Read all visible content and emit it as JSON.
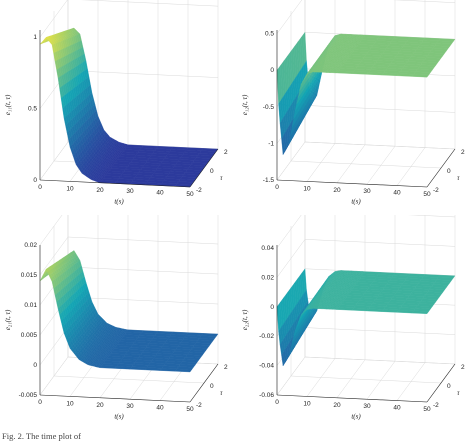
{
  "colors": {
    "low": "#2c3a9c",
    "mid": "#14a6b4",
    "high": "#fbe83a",
    "axis": "#222222",
    "grid": "#d9d9d9"
  },
  "caption_fragment": "Fig. 2. The time plot of",
  "chart_data": [
    {
      "type": "surface",
      "title": "",
      "xlabel": "t(s)",
      "ylabel": "τ",
      "zlabel": "e₁₁(t, τ)",
      "x_ticks": [
        "0",
        "10",
        "20",
        "30",
        "40",
        "50"
      ],
      "y_ticks": [
        "-2",
        "0",
        "2"
      ],
      "z_ticks": [
        "0",
        "0.5",
        "1"
      ],
      "xlim": [
        0,
        50
      ],
      "ylim": [
        -2,
        2
      ],
      "zlim": [
        0,
        1.05
      ],
      "grid": true,
      "profile": [
        [
          0,
          0.95
        ],
        [
          2,
          1.0
        ],
        [
          4,
          0.95
        ],
        [
          6,
          0.72
        ],
        [
          8,
          0.44
        ],
        [
          10,
          0.24
        ],
        [
          12,
          0.12
        ],
        [
          14,
          0.06
        ],
        [
          17,
          0.02
        ],
        [
          20,
          0
        ],
        [
          50,
          0
        ]
      ],
      "tau_decay": 0.2
    },
    {
      "type": "surface",
      "title": "",
      "xlabel": "t(s)",
      "ylabel": "τ",
      "zlabel": "e₁₂(t, τ)",
      "x_ticks": [
        "0",
        "10",
        "20",
        "30",
        "40",
        "50"
      ],
      "y_ticks": [
        "-2",
        "0",
        "2"
      ],
      "z_ticks": [
        "-1.5",
        "-1",
        "-0.5",
        "0",
        "0.5"
      ],
      "xlim": [
        0,
        50
      ],
      "ylim": [
        -2,
        2
      ],
      "zlim": [
        -1.5,
        0.55
      ],
      "grid": true,
      "profile": [
        [
          0,
          0
        ],
        [
          0.6,
          -0.55
        ],
        [
          2,
          -1.15
        ],
        [
          4,
          -1.0
        ],
        [
          6,
          -0.55
        ],
        [
          8,
          -0.18
        ],
        [
          10,
          -0.03
        ],
        [
          12,
          0
        ],
        [
          50,
          0
        ]
      ],
      "tau_decay": 0.15
    },
    {
      "type": "surface",
      "title": "",
      "xlabel": "t(s)",
      "ylabel": "τ",
      "zlabel": "e₂₁(t, τ)",
      "x_ticks": [
        "0",
        "10",
        "20",
        "30",
        "40",
        "50"
      ],
      "y_ticks": [
        "-2",
        "0",
        "2"
      ],
      "z_ticks": [
        "-0.005",
        "0",
        "0.005",
        "0.01",
        "0.015",
        "0.02"
      ],
      "xlim": [
        0,
        50
      ],
      "ylim": [
        -2,
        2
      ],
      "zlim": [
        -0.005,
        0.02
      ],
      "grid": true,
      "profile": [
        [
          0,
          0.014
        ],
        [
          2,
          0.016
        ],
        [
          4,
          0.014
        ],
        [
          6,
          0.0095
        ],
        [
          8,
          0.0055
        ],
        [
          10,
          0.003
        ],
        [
          13,
          0.0012
        ],
        [
          16,
          0.0004
        ],
        [
          20,
          0
        ],
        [
          50,
          0
        ]
      ],
      "tau_decay": 0.2
    },
    {
      "type": "surface",
      "title": "",
      "xlabel": "t(s)",
      "ylabel": "τ",
      "zlabel": "e₂₂(t, τ)",
      "x_ticks": [
        "0",
        "10",
        "20",
        "30",
        "40",
        "50"
      ],
      "y_ticks": [
        "-2",
        "0",
        "2"
      ],
      "z_ticks": [
        "-0.06",
        "-0.04",
        "-0.02",
        "0",
        "0.02",
        "0.04"
      ],
      "xlim": [
        0,
        50
      ],
      "ylim": [
        -2,
        2
      ],
      "zlim": [
        -0.06,
        0.042
      ],
      "grid": true,
      "profile": [
        [
          0,
          0
        ],
        [
          0.6,
          -0.02
        ],
        [
          2,
          -0.04
        ],
        [
          4,
          -0.033
        ],
        [
          6,
          -0.016
        ],
        [
          8,
          -0.005
        ],
        [
          10,
          -0.001
        ],
        [
          12,
          0
        ],
        [
          50,
          0
        ]
      ],
      "tau_decay": 0.15
    }
  ]
}
